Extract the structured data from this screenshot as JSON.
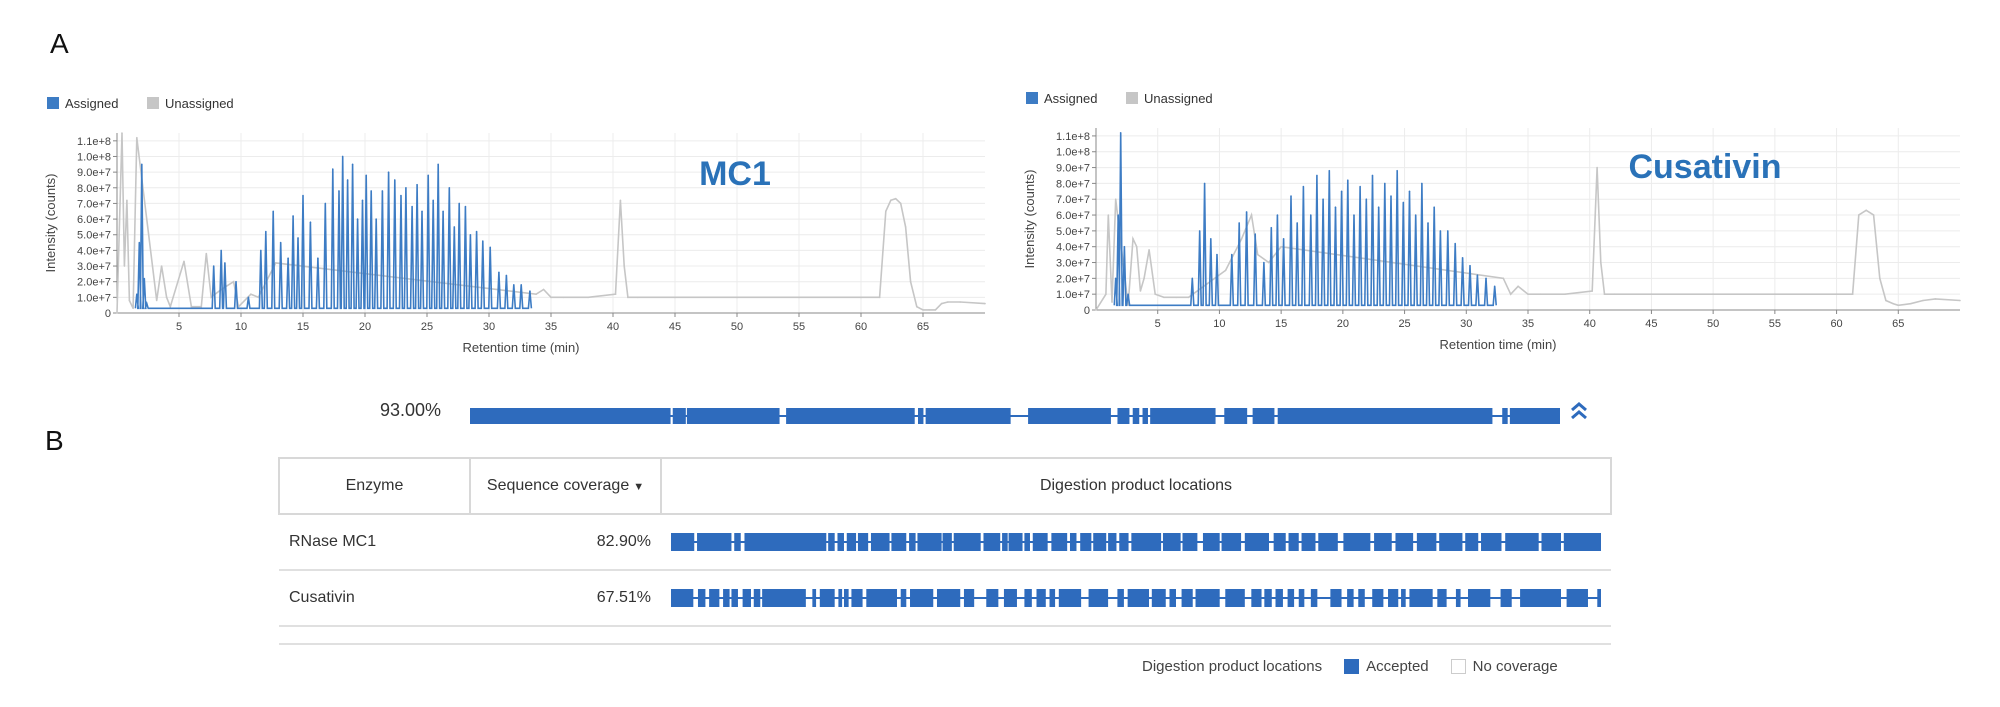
{
  "panel_labels": {
    "a": "A",
    "b": "B"
  },
  "colors": {
    "assigned": "#3d7cc4",
    "unassigned": "#c6c6c6",
    "track": "#2e6bbd",
    "chart_title": "#2a72b8"
  },
  "chart_data": [
    {
      "type": "line",
      "title": "MC1",
      "xlabel": "Retention time (min)",
      "ylabel": "Intensity (counts)",
      "xlim": [
        0,
        70
      ],
      "ylim": [
        0,
        115000000
      ],
      "x_ticks": [
        5,
        10,
        15,
        20,
        25,
        30,
        35,
        40,
        45,
        50,
        55,
        60,
        65
      ],
      "x_tick_labels": [
        "5",
        "10",
        "15",
        "20",
        "25",
        "30",
        "35",
        "40",
        "45",
        "50",
        "55",
        "60",
        "65"
      ],
      "y_ticks": [
        0,
        10000000,
        20000000,
        30000000,
        40000000,
        50000000,
        60000000,
        70000000,
        80000000,
        90000000,
        100000000,
        110000000
      ],
      "y_tick_labels": [
        "0",
        "1.0e+7",
        "2.0e+7",
        "3.0e+7",
        "4.0e+7",
        "5.0e+7",
        "6.0e+7",
        "7.0e+7",
        "8.0e+7",
        "9.0e+7",
        "1.0e+8",
        "1.1e+8"
      ],
      "legend": [
        "Assigned",
        "Unassigned"
      ],
      "legend_position": "top-left",
      "grid": true,
      "series": [
        {
          "name": "Assigned",
          "x": [
            1.6,
            1.8,
            2.0,
            2.2,
            2.4,
            7.8,
            8.4,
            8.7,
            9.6,
            10.6,
            11.6,
            12.0,
            12.6,
            13.2,
            13.8,
            14.2,
            14.6,
            15.0,
            15.6,
            16.2,
            16.8,
            17.4,
            17.9,
            18.2,
            18.6,
            19.0,
            19.4,
            19.8,
            20.1,
            20.5,
            20.9,
            21.4,
            21.9,
            22.4,
            22.9,
            23.3,
            23.8,
            24.2,
            24.6,
            25.1,
            25.5,
            25.9,
            26.3,
            26.8,
            27.2,
            27.6,
            28.1,
            28.5,
            29.0,
            29.5,
            30.1,
            30.8,
            31.4,
            32.0,
            32.6,
            33.3
          ],
          "y": [
            12000000,
            45000000,
            95000000,
            22000000,
            6000000,
            30000000,
            40000000,
            32000000,
            20000000,
            10000000,
            40000000,
            52000000,
            65000000,
            45000000,
            35000000,
            62000000,
            48000000,
            75000000,
            58000000,
            35000000,
            70000000,
            92000000,
            78000000,
            100000000,
            85000000,
            95000000,
            60000000,
            72000000,
            88000000,
            78000000,
            60000000,
            78000000,
            90000000,
            85000000,
            75000000,
            80000000,
            68000000,
            82000000,
            65000000,
            88000000,
            72000000,
            95000000,
            65000000,
            80000000,
            55000000,
            70000000,
            68000000,
            50000000,
            52000000,
            46000000,
            42000000,
            26000000,
            24000000,
            18000000,
            18000000,
            14000000
          ]
        },
        {
          "name": "Unassigned",
          "x": [
            0.0,
            0.4,
            0.6,
            0.8,
            1.0,
            1.3,
            1.6,
            3.2,
            3.6,
            4.0,
            4.3,
            5.4,
            6.0,
            6.8,
            7.2,
            7.6,
            8.4,
            9.4,
            9.8,
            10.8,
            11.4,
            12.8,
            33.8,
            34.4,
            35.0,
            36.0,
            38.0,
            40.2,
            40.6,
            40.9,
            41.2,
            42.0,
            45,
            50,
            55,
            60,
            61.5,
            62.0,
            62.4,
            62.8,
            63.2,
            63.6,
            64.0,
            64.5,
            65.0,
            65.5,
            66.0,
            66.5,
            67.0,
            68.0,
            70.0
          ],
          "y": [
            0,
            115000000,
            30000000,
            72000000,
            8000000,
            3000000,
            112000000,
            8000000,
            30000000,
            10000000,
            4000000,
            33000000,
            4000000,
            4000000,
            38000000,
            10000000,
            15000000,
            20000000,
            4000000,
            12000000,
            10000000,
            32000000,
            12000000,
            15000000,
            10000000,
            10000000,
            10000000,
            12000000,
            72000000,
            30000000,
            10000000,
            10000000,
            10000000,
            10000000,
            10000000,
            10000000,
            10000000,
            65000000,
            72000000,
            73000000,
            70000000,
            55000000,
            20000000,
            4000000,
            2000000,
            2000000,
            2000000,
            6000000,
            7000000,
            7000000,
            6000000
          ]
        }
      ]
    },
    {
      "type": "line",
      "title": "Cusativin",
      "xlabel": "Retention time (min)",
      "ylabel": "Intensity (counts)",
      "xlim": [
        0,
        70
      ],
      "ylim": [
        0,
        115000000
      ],
      "x_ticks": [
        5,
        10,
        15,
        20,
        25,
        30,
        35,
        40,
        45,
        50,
        55,
        60,
        65
      ],
      "x_tick_labels": [
        "5",
        "10",
        "15",
        "20",
        "25",
        "30",
        "35",
        "40",
        "45",
        "50",
        "55",
        "60",
        "65"
      ],
      "y_ticks": [
        0,
        10000000,
        20000000,
        30000000,
        40000000,
        50000000,
        60000000,
        70000000,
        80000000,
        90000000,
        100000000,
        110000000
      ],
      "y_tick_labels": [
        "0",
        "1.0e+7",
        "2.0e+7",
        "3.0e+7",
        "4.0e+7",
        "5.0e+7",
        "6.0e+7",
        "7.0e+7",
        "8.0e+7",
        "9.0e+7",
        "1.0e+8",
        "1.1e+8"
      ],
      "legend": [
        "Assigned",
        "Unassigned"
      ],
      "legend_position": "top-left",
      "grid": true,
      "series": [
        {
          "name": "Assigned",
          "x": [
            1.6,
            1.8,
            2.0,
            2.3,
            2.6,
            7.8,
            8.4,
            8.8,
            9.3,
            9.8,
            11.0,
            11.6,
            12.2,
            12.9,
            13.6,
            14.2,
            14.7,
            15.2,
            15.8,
            16.3,
            16.8,
            17.4,
            17.9,
            18.4,
            18.9,
            19.4,
            19.9,
            20.4,
            20.9,
            21.4,
            21.9,
            22.4,
            22.9,
            23.4,
            23.9,
            24.4,
            24.9,
            25.4,
            25.9,
            26.4,
            26.9,
            27.4,
            27.9,
            28.5,
            29.1,
            29.7,
            30.3,
            30.9,
            31.6,
            32.3
          ],
          "y": [
            20000000,
            60000000,
            112000000,
            40000000,
            10000000,
            20000000,
            50000000,
            80000000,
            45000000,
            35000000,
            35000000,
            55000000,
            62000000,
            48000000,
            30000000,
            52000000,
            60000000,
            45000000,
            72000000,
            55000000,
            78000000,
            60000000,
            85000000,
            70000000,
            88000000,
            65000000,
            75000000,
            82000000,
            60000000,
            78000000,
            70000000,
            85000000,
            65000000,
            80000000,
            72000000,
            88000000,
            68000000,
            75000000,
            60000000,
            80000000,
            55000000,
            65000000,
            50000000,
            50000000,
            42000000,
            33000000,
            28000000,
            22000000,
            20000000,
            15000000
          ]
        },
        {
          "name": "Unassigned",
          "x": [
            0.0,
            0.8,
            1.0,
            1.3,
            1.6,
            2.6,
            3.0,
            3.3,
            3.6,
            3.9,
            4.3,
            4.8,
            5.5,
            6.5,
            7.5,
            10.5,
            11.8,
            12.6,
            13.1,
            14.0,
            15.0,
            33.0,
            33.6,
            34.2,
            35.0,
            36.0,
            38.0,
            40.2,
            40.6,
            40.9,
            41.2,
            42.0,
            45,
            50,
            55,
            60,
            61.3,
            61.8,
            62.4,
            63.0,
            63.5,
            64.0,
            64.6,
            65.0,
            66.0,
            67.0,
            68.0,
            70.0
          ],
          "y": [
            0,
            10000000,
            60000000,
            5000000,
            70000000,
            3000000,
            45000000,
            40000000,
            12000000,
            20000000,
            38000000,
            10000000,
            8000000,
            8000000,
            8000000,
            25000000,
            45000000,
            60000000,
            35000000,
            30000000,
            40000000,
            20000000,
            10000000,
            15000000,
            10000000,
            10000000,
            10000000,
            12000000,
            90000000,
            30000000,
            10000000,
            10000000,
            10000000,
            10000000,
            10000000,
            10000000,
            10000000,
            60000000,
            63000000,
            60000000,
            20000000,
            6000000,
            4000000,
            3000000,
            4000000,
            6000000,
            7000000,
            6000000
          ]
        }
      ]
    }
  ],
  "coverage": {
    "total_label": "93.00%",
    "total_segments": [
      [
        0.0,
        0.184
      ],
      [
        0.186,
        0.198
      ],
      [
        0.199,
        0.284
      ],
      [
        0.29,
        0.408
      ],
      [
        0.411,
        0.416
      ],
      [
        0.418,
        0.496
      ],
      [
        0.512,
        0.588
      ],
      [
        0.594,
        0.605
      ],
      [
        0.608,
        0.614
      ],
      [
        0.617,
        0.622
      ],
      [
        0.624,
        0.684
      ],
      [
        0.692,
        0.713
      ],
      [
        0.718,
        0.738
      ],
      [
        0.741,
        0.938
      ],
      [
        0.947,
        0.952
      ],
      [
        0.954,
        1.0
      ]
    ],
    "table": {
      "headers": {
        "enzyme": "Enzyme",
        "coverage": "Sequence coverage",
        "locations": "Digestion product locations"
      },
      "sort_caret": "▼",
      "rows": [
        {
          "enzyme": "RNase MC1",
          "coverage": "82.90%",
          "segments": [
            [
              0.0,
              0.025
            ],
            [
              0.028,
              0.065
            ],
            [
              0.068,
              0.075
            ],
            [
              0.079,
              0.167
            ],
            [
              0.169,
              0.176
            ],
            [
              0.179,
              0.186
            ],
            [
              0.189,
              0.199
            ],
            [
              0.201,
              0.212
            ],
            [
              0.215,
              0.235
            ],
            [
              0.237,
              0.253
            ],
            [
              0.256,
              0.263
            ],
            [
              0.265,
              0.291
            ],
            [
              0.292,
              0.302
            ],
            [
              0.304,
              0.333
            ],
            [
              0.336,
              0.354
            ],
            [
              0.356,
              0.362
            ],
            [
              0.363,
              0.378
            ],
            [
              0.38,
              0.386
            ],
            [
              0.389,
              0.405
            ],
            [
              0.409,
              0.426
            ],
            [
              0.429,
              0.436
            ],
            [
              0.44,
              0.452
            ],
            [
              0.454,
              0.468
            ],
            [
              0.47,
              0.479
            ],
            [
              0.482,
              0.492
            ],
            [
              0.495,
              0.527
            ],
            [
              0.529,
              0.548
            ],
            [
              0.55,
              0.566
            ],
            [
              0.572,
              0.59
            ],
            [
              0.592,
              0.613
            ],
            [
              0.617,
              0.643
            ],
            [
              0.648,
              0.661
            ],
            [
              0.664,
              0.675
            ],
            [
              0.678,
              0.693
            ],
            [
              0.696,
              0.717
            ],
            [
              0.723,
              0.752
            ],
            [
              0.756,
              0.775
            ],
            [
              0.779,
              0.798
            ],
            [
              0.802,
              0.823
            ],
            [
              0.826,
              0.851
            ],
            [
              0.854,
              0.868
            ],
            [
              0.871,
              0.893
            ],
            [
              0.897,
              0.933
            ],
            [
              0.936,
              0.957
            ],
            [
              0.96,
              1.0
            ]
          ]
        },
        {
          "enzyme": "Cusativin",
          "coverage": "67.51%",
          "segments": [
            [
              0.0,
              0.024
            ],
            [
              0.029,
              0.037
            ],
            [
              0.041,
              0.052
            ],
            [
              0.056,
              0.063
            ],
            [
              0.065,
              0.072
            ],
            [
              0.077,
              0.086
            ],
            [
              0.089,
              0.096
            ],
            [
              0.098,
              0.145
            ],
            [
              0.152,
              0.156
            ],
            [
              0.16,
              0.176
            ],
            [
              0.18,
              0.184
            ],
            [
              0.186,
              0.191
            ],
            [
              0.194,
              0.206
            ],
            [
              0.21,
              0.243
            ],
            [
              0.247,
              0.253
            ],
            [
              0.257,
              0.282
            ],
            [
              0.286,
              0.311
            ],
            [
              0.315,
              0.326
            ],
            [
              0.339,
              0.352
            ],
            [
              0.358,
              0.372
            ],
            [
              0.38,
              0.388
            ],
            [
              0.393,
              0.403
            ],
            [
              0.407,
              0.413
            ],
            [
              0.417,
              0.441
            ],
            [
              0.449,
              0.47
            ],
            [
              0.48,
              0.487
            ],
            [
              0.491,
              0.514
            ],
            [
              0.517,
              0.532
            ],
            [
              0.536,
              0.543
            ],
            [
              0.549,
              0.561
            ],
            [
              0.564,
              0.59
            ],
            [
              0.596,
              0.617
            ],
            [
              0.624,
              0.635
            ],
            [
              0.638,
              0.646
            ],
            [
              0.65,
              0.658
            ],
            [
              0.663,
              0.67
            ],
            [
              0.675,
              0.681
            ],
            [
              0.688,
              0.695
            ],
            [
              0.709,
              0.721
            ],
            [
              0.727,
              0.734
            ],
            [
              0.739,
              0.746
            ],
            [
              0.754,
              0.766
            ],
            [
              0.771,
              0.782
            ],
            [
              0.785,
              0.79
            ],
            [
              0.794,
              0.819
            ],
            [
              0.824,
              0.834
            ],
            [
              0.844,
              0.849
            ],
            [
              0.857,
              0.881
            ],
            [
              0.892,
              0.904
            ],
            [
              0.913,
              0.957
            ],
            [
              0.963,
              0.986
            ],
            [
              0.996,
              1.0
            ]
          ]
        }
      ]
    },
    "legend": {
      "title": "Digestion product locations",
      "accepted": "Accepted",
      "no_coverage": "No coverage"
    }
  }
}
